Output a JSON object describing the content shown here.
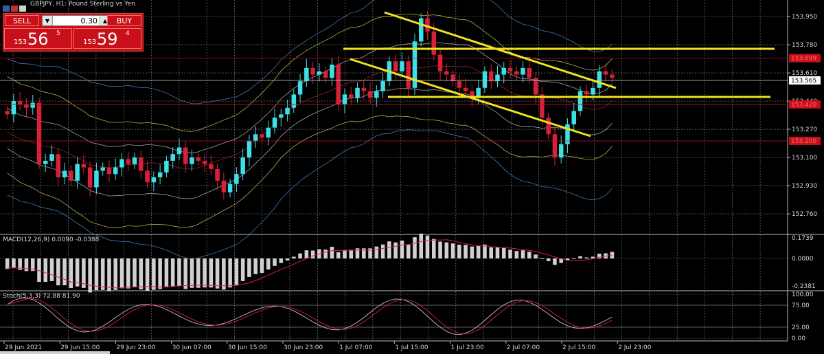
{
  "window": {
    "title": "GBPJPY, H1:  Pound Sterling vs Yen",
    "icons": [
      "chart-icon",
      "flag-icon",
      "flag-icon"
    ]
  },
  "trade_panel": {
    "sell_label": "SELL",
    "buy_label": "BUY",
    "lot_value": "0.30",
    "sell_price": {
      "prefix": "153",
      "big": "56",
      "sup": "5"
    },
    "buy_price": {
      "prefix": "153",
      "big": "59",
      "sup": "4"
    },
    "color": "#c8101a"
  },
  "main_chart": {
    "y_ticks": [
      "153.950",
      "153.780",
      "153.610",
      "153.440",
      "153.270",
      "153.100",
      "152.930",
      "152.760"
    ],
    "y_tick_values": [
      153.95,
      153.78,
      153.61,
      153.44,
      153.27,
      153.1,
      152.93,
      152.76
    ],
    "current_price": "153.565",
    "price_labels": [
      {
        "text": "153.699",
        "value": 153.699,
        "color": "#c8101a"
      },
      {
        "text": "153.420",
        "value": 153.42,
        "color": "#c8101a"
      },
      {
        "text": "153.200",
        "value": 153.2,
        "color": "#c8101a"
      }
    ]
  },
  "macd": {
    "label": "MACD(12,26,9) 0.0090 -0.0388",
    "y_ticks": [
      "0.1739",
      "0.0000",
      "-0.2381"
    ]
  },
  "stoch": {
    "label": "Stoch(5,3,3) 72.88 81.90",
    "y_ticks": [
      "100.00",
      "75.00",
      "25.00",
      "0.00"
    ]
  },
  "x_axis": {
    "labels": [
      "29 Jun 2021",
      "29 Jun 15:00",
      "29 Jun 23:00",
      "30 Jun 07:00",
      "30 Jun 15:00",
      "30 Jun 23:00",
      "1 Jul 07:00",
      "1 Jul 15:00",
      "1 Jul 23:00",
      "2 Jul 07:00",
      "2 Jul 15:00",
      "2 Jul 23:00"
    ]
  },
  "colors": {
    "bull": "#3ee0e8",
    "bear": "#d8203a",
    "trendline": "#f2e21a",
    "grid": "#8a8a8a",
    "macd_hist": "#d0d0d0"
  }
}
